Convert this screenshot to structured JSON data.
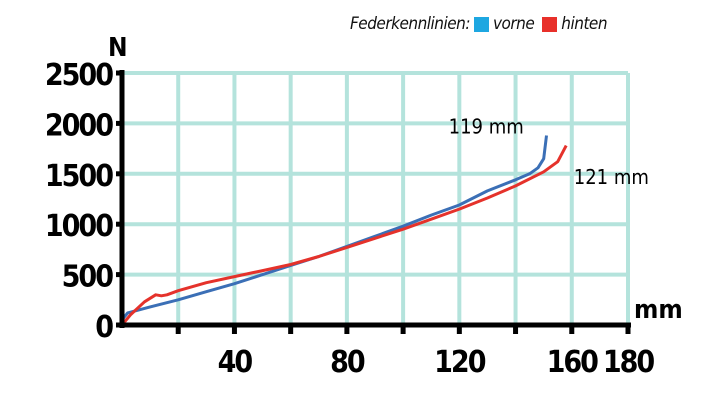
{
  "chart_data": {
    "type": "line",
    "title": "",
    "legend_title": "Federkennlinien:",
    "legend_position": "top-right",
    "xlabel": "mm",
    "ylabel": "N",
    "xlim": [
      0,
      180
    ],
    "ylim": [
      0,
      2500
    ],
    "x_ticks": [
      20,
      40,
      60,
      80,
      100,
      120,
      140,
      160,
      180
    ],
    "x_tick_labels": [
      "40",
      "80",
      "120",
      "160",
      "180"
    ],
    "y_tick_labels": [
      "0",
      "500",
      "1000",
      "1500",
      "2000",
      "2500"
    ],
    "grid": true,
    "colors": {
      "grid": "#b4e3dc",
      "axis": "#000000"
    },
    "series": [
      {
        "name": "vorne",
        "color": "#3b6fb6",
        "legend_color": "#1ea7e1",
        "x": [
          0,
          2,
          10,
          20,
          30,
          40,
          50,
          60,
          70,
          80,
          90,
          100,
          110,
          120,
          130,
          140,
          145,
          148,
          150,
          151
        ],
        "y": [
          50,
          120,
          180,
          250,
          330,
          410,
          500,
          590,
          680,
          780,
          880,
          980,
          1090,
          1190,
          1330,
          1440,
          1500,
          1560,
          1650,
          1880
        ]
      },
      {
        "name": "hinten",
        "color": "#e5322b",
        "legend_color": "#e8302a",
        "x": [
          0,
          3,
          8,
          12,
          14,
          16,
          20,
          30,
          40,
          50,
          60,
          70,
          80,
          90,
          100,
          110,
          120,
          130,
          140,
          150,
          155,
          158
        ],
        "y": [
          0,
          100,
          230,
          300,
          290,
          300,
          340,
          420,
          480,
          540,
          600,
          680,
          770,
          860,
          950,
          1050,
          1150,
          1260,
          1380,
          1520,
          1620,
          1780
        ]
      }
    ],
    "annotations": [
      {
        "text": "119 mm",
        "x": 150,
        "y": 1980
      },
      {
        "text": "121 mm",
        "x": 160,
        "y": 1480
      }
    ]
  }
}
